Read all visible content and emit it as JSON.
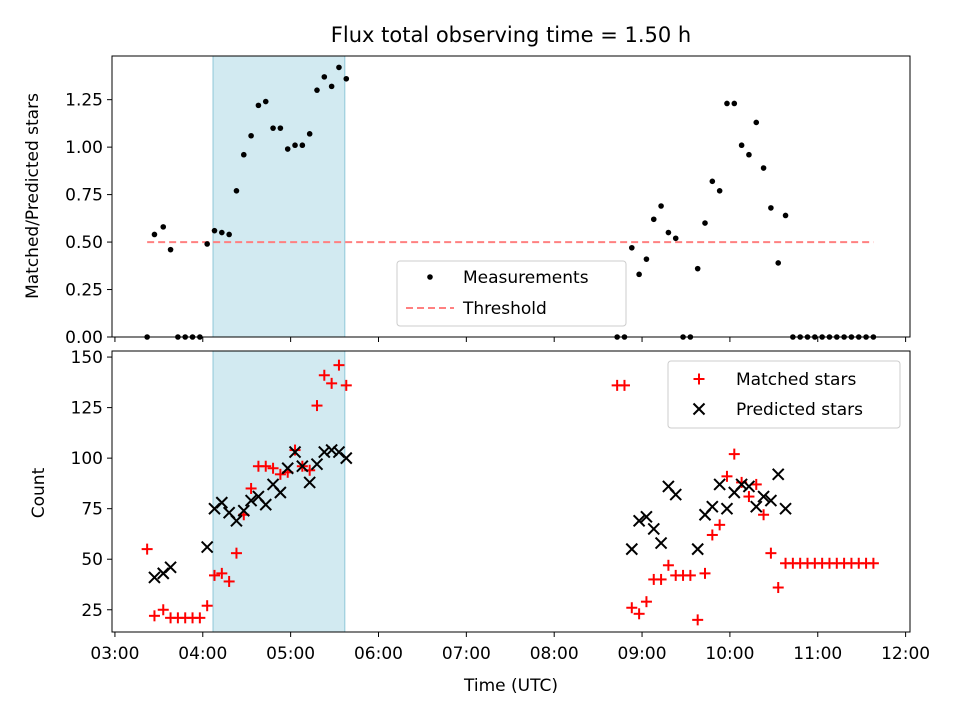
{
  "chart_data": [
    {
      "type": "scatter",
      "title": "Flux total observing time = 1.50 h",
      "xlabel": "",
      "ylabel": "Matched/Predicted stars",
      "ylim": [
        0,
        1.48
      ],
      "yticks": [
        0.0,
        0.25,
        0.5,
        0.75,
        1.0,
        1.25
      ],
      "ytick_labels": [
        "0.00",
        "0.25",
        "0.50",
        "0.75",
        "1.00",
        "1.25"
      ],
      "shaded_span": {
        "start": "04:07",
        "end": "05:37",
        "color": "#add8e6"
      },
      "legend_position": "lower center",
      "series": [
        {
          "name": "Measurements",
          "marker": "dot",
          "color": "#000000",
          "points": [
            [
              "03:22",
              0.0
            ],
            [
              "03:27",
              0.54
            ],
            [
              "03:33",
              0.58
            ],
            [
              "03:38",
              0.46
            ],
            [
              "03:43",
              0.0
            ],
            [
              "03:48",
              0.0
            ],
            [
              "03:53",
              0.0
            ],
            [
              "03:58",
              0.0
            ],
            [
              "04:03",
              0.49
            ],
            [
              "04:08",
              0.56
            ],
            [
              "04:13",
              0.55
            ],
            [
              "04:18",
              0.54
            ],
            [
              "04:23",
              0.77
            ],
            [
              "04:28",
              0.96
            ],
            [
              "04:33",
              1.06
            ],
            [
              "04:38",
              1.22
            ],
            [
              "04:43",
              1.24
            ],
            [
              "04:48",
              1.1
            ],
            [
              "04:53",
              1.1
            ],
            [
              "04:58",
              0.99
            ],
            [
              "05:03",
              1.01
            ],
            [
              "05:08",
              1.01
            ],
            [
              "05:13",
              1.07
            ],
            [
              "05:18",
              1.3
            ],
            [
              "05:23",
              1.37
            ],
            [
              "05:28",
              1.32
            ],
            [
              "05:33",
              1.42
            ],
            [
              "05:38",
              1.36
            ],
            [
              "08:43",
              0.0
            ],
            [
              "08:48",
              0.0
            ],
            [
              "08:53",
              0.47
            ],
            [
              "08:58",
              0.33
            ],
            [
              "09:03",
              0.41
            ],
            [
              "09:08",
              0.62
            ],
            [
              "09:13",
              0.69
            ],
            [
              "09:18",
              0.55
            ],
            [
              "09:23",
              0.52
            ],
            [
              "09:28",
              0.0
            ],
            [
              "09:33",
              0.0
            ],
            [
              "09:38",
              0.36
            ],
            [
              "09:43",
              0.6
            ],
            [
              "09:48",
              0.82
            ],
            [
              "09:53",
              0.77
            ],
            [
              "09:58",
              1.23
            ],
            [
              "10:03",
              1.23
            ],
            [
              "10:08",
              1.01
            ],
            [
              "10:13",
              0.96
            ],
            [
              "10:18",
              1.13
            ],
            [
              "10:23",
              0.89
            ],
            [
              "10:28",
              0.68
            ],
            [
              "10:33",
              0.39
            ],
            [
              "10:38",
              0.64
            ],
            [
              "10:43",
              0.0
            ],
            [
              "10:48",
              0.0
            ],
            [
              "10:53",
              0.0
            ],
            [
              "10:58",
              0.0
            ],
            [
              "11:03",
              0.0
            ],
            [
              "11:08",
              0.0
            ],
            [
              "11:13",
              0.0
            ],
            [
              "11:18",
              0.0
            ],
            [
              "11:23",
              0.0
            ],
            [
              "11:28",
              0.0
            ],
            [
              "11:33",
              0.0
            ],
            [
              "11:38",
              0.0
            ]
          ]
        },
        {
          "name": "Threshold",
          "marker": "dashed-line",
          "color": "#ff8080",
          "points": [
            [
              "03:22",
              0.5
            ],
            [
              "11:38",
              0.5
            ]
          ]
        }
      ]
    },
    {
      "type": "scatter",
      "title": "",
      "xlabel": "Time (UTC)",
      "ylabel": "Count",
      "ylim": [
        14,
        153
      ],
      "yticks": [
        25,
        50,
        75,
        100,
        125,
        150
      ],
      "ytick_labels": [
        "25",
        "50",
        "75",
        "100",
        "125",
        "150"
      ],
      "xlim": [
        "02:58",
        "12:03"
      ],
      "xticks": [
        "03:00",
        "04:00",
        "05:00",
        "06:00",
        "07:00",
        "08:00",
        "09:00",
        "10:00",
        "11:00",
        "12:00"
      ],
      "shaded_span": {
        "start": "04:07",
        "end": "05:37",
        "color": "#add8e6"
      },
      "legend_position": "upper right",
      "series": [
        {
          "name": "Matched stars",
          "marker": "plus",
          "color": "#ff0000",
          "points": [
            [
              "03:22",
              55
            ],
            [
              "03:27",
              22
            ],
            [
              "03:33",
              25
            ],
            [
              "03:38",
              21
            ],
            [
              "03:43",
              21
            ],
            [
              "03:48",
              21
            ],
            [
              "03:53",
              21
            ],
            [
              "03:58",
              21
            ],
            [
              "04:03",
              27
            ],
            [
              "04:08",
              42
            ],
            [
              "04:13",
              43
            ],
            [
              "04:18",
              39
            ],
            [
              "04:23",
              53
            ],
            [
              "04:28",
              72
            ],
            [
              "04:33",
              85
            ],
            [
              "04:38",
              96
            ],
            [
              "04:43",
              96
            ],
            [
              "04:48",
              95
            ],
            [
              "04:53",
              92
            ],
            [
              "04:58",
              93
            ],
            [
              "05:03",
              104
            ],
            [
              "05:08",
              96
            ],
            [
              "05:13",
              94
            ],
            [
              "05:18",
              126
            ],
            [
              "05:23",
              141
            ],
            [
              "05:28",
              137
            ],
            [
              "05:33",
              146
            ],
            [
              "05:38",
              136
            ],
            [
              "08:43",
              136
            ],
            [
              "08:48",
              136
            ],
            [
              "08:53",
              26
            ],
            [
              "08:58",
              23
            ],
            [
              "09:03",
              29
            ],
            [
              "09:08",
              40
            ],
            [
              "09:13",
              40
            ],
            [
              "09:18",
              47
            ],
            [
              "09:23",
              42
            ],
            [
              "09:28",
              42
            ],
            [
              "09:33",
              42
            ],
            [
              "09:38",
              20
            ],
            [
              "09:43",
              43
            ],
            [
              "09:48",
              62
            ],
            [
              "09:53",
              67
            ],
            [
              "09:58",
              91
            ],
            [
              "10:03",
              102
            ],
            [
              "10:08",
              88
            ],
            [
              "10:13",
              81
            ],
            [
              "10:18",
              87
            ],
            [
              "10:23",
              72
            ],
            [
              "10:28",
              53
            ],
            [
              "10:33",
              36
            ],
            [
              "10:38",
              48
            ],
            [
              "10:43",
              48
            ],
            [
              "10:48",
              48
            ],
            [
              "10:53",
              48
            ],
            [
              "10:58",
              48
            ],
            [
              "11:03",
              48
            ],
            [
              "11:08",
              48
            ],
            [
              "11:13",
              48
            ],
            [
              "11:18",
              48
            ],
            [
              "11:23",
              48
            ],
            [
              "11:28",
              48
            ],
            [
              "11:33",
              48
            ],
            [
              "11:38",
              48
            ]
          ]
        },
        {
          "name": "Predicted stars",
          "marker": "x",
          "color": "#000000",
          "points": [
            [
              "03:27",
              41
            ],
            [
              "03:33",
              43
            ],
            [
              "03:38",
              46
            ],
            [
              "04:03",
              56
            ],
            [
              "04:08",
              75
            ],
            [
              "04:13",
              78
            ],
            [
              "04:18",
              73
            ],
            [
              "04:23",
              69
            ],
            [
              "04:28",
              74
            ],
            [
              "04:33",
              79
            ],
            [
              "04:38",
              81
            ],
            [
              "04:43",
              77
            ],
            [
              "04:48",
              87
            ],
            [
              "04:53",
              83
            ],
            [
              "04:58",
              95
            ],
            [
              "05:03",
              103
            ],
            [
              "05:08",
              96
            ],
            [
              "05:13",
              88
            ],
            [
              "05:18",
              97
            ],
            [
              "05:23",
              103
            ],
            [
              "05:28",
              104
            ],
            [
              "05:33",
              103
            ],
            [
              "05:38",
              100
            ],
            [
              "08:53",
              55
            ],
            [
              "08:58",
              69
            ],
            [
              "09:03",
              71
            ],
            [
              "09:08",
              65
            ],
            [
              "09:13",
              58
            ],
            [
              "09:18",
              86
            ],
            [
              "09:23",
              82
            ],
            [
              "09:38",
              55
            ],
            [
              "09:43",
              72
            ],
            [
              "09:48",
              76
            ],
            [
              "09:53",
              87
            ],
            [
              "09:58",
              75
            ],
            [
              "10:03",
              83
            ],
            [
              "10:08",
              87
            ],
            [
              "10:13",
              86
            ],
            [
              "10:18",
              76
            ],
            [
              "10:23",
              81
            ],
            [
              "10:28",
              79
            ],
            [
              "10:33",
              92
            ],
            [
              "10:38",
              75
            ]
          ]
        }
      ]
    }
  ]
}
